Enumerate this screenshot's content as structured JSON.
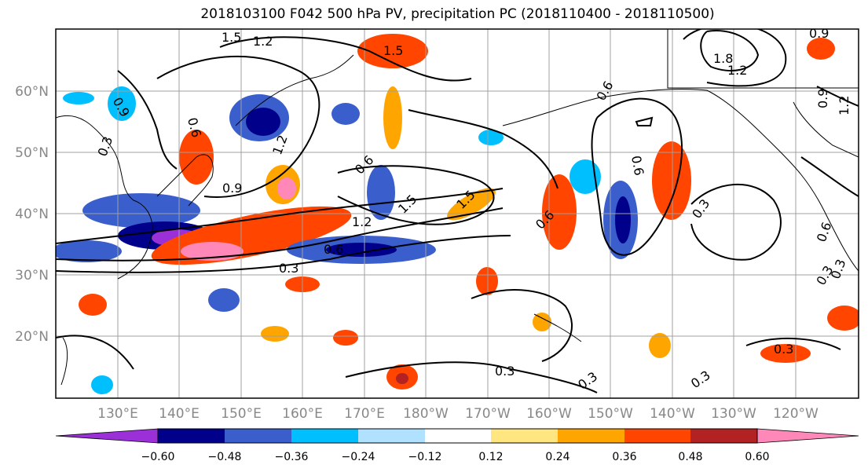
{
  "title": "2018103100 F042 500 hPa PV, precipitation PC (2018110400 - 2018110500)",
  "latitude_labels": [
    "60°N",
    "50°N",
    "40°N",
    "30°N",
    "20°N"
  ],
  "longitude_labels": [
    "130°E",
    "140°E",
    "150°E",
    "160°E",
    "170°E",
    "180°W",
    "170°W",
    "160°W",
    "150°W",
    "140°W",
    "130°W",
    "120°W"
  ],
  "colorbar": {
    "tick_labels": [
      "−0.60",
      "−0.48",
      "−0.36",
      "−0.24",
      "−0.12",
      "0.12",
      "0.24",
      "0.36",
      "0.48",
      "0.60"
    ],
    "colors": [
      "#9b30d9",
      "#00008b",
      "#3a5fcd",
      "#00bfff",
      "#b0e2ff",
      "#ffffff",
      "#ffe680",
      "#ffa500",
      "#ff4500",
      "#b22222",
      "#ff88b8"
    ]
  },
  "contour_labels": [
    "1.5",
    "1.2",
    "0.9",
    "0.6",
    "0.3",
    "1.5",
    "1.2",
    "0.9",
    "0.6",
    "0.3",
    "1.5",
    "1.8",
    "1.2",
    "0.9",
    "1.2",
    "0.6",
    "0.3",
    "0.3",
    "0.6",
    "0.3",
    "0.3",
    "0.3",
    "0.3",
    "0.6",
    "0.9",
    "0.6",
    "1.5",
    "0.6",
    "0.3",
    "1.2"
  ]
}
